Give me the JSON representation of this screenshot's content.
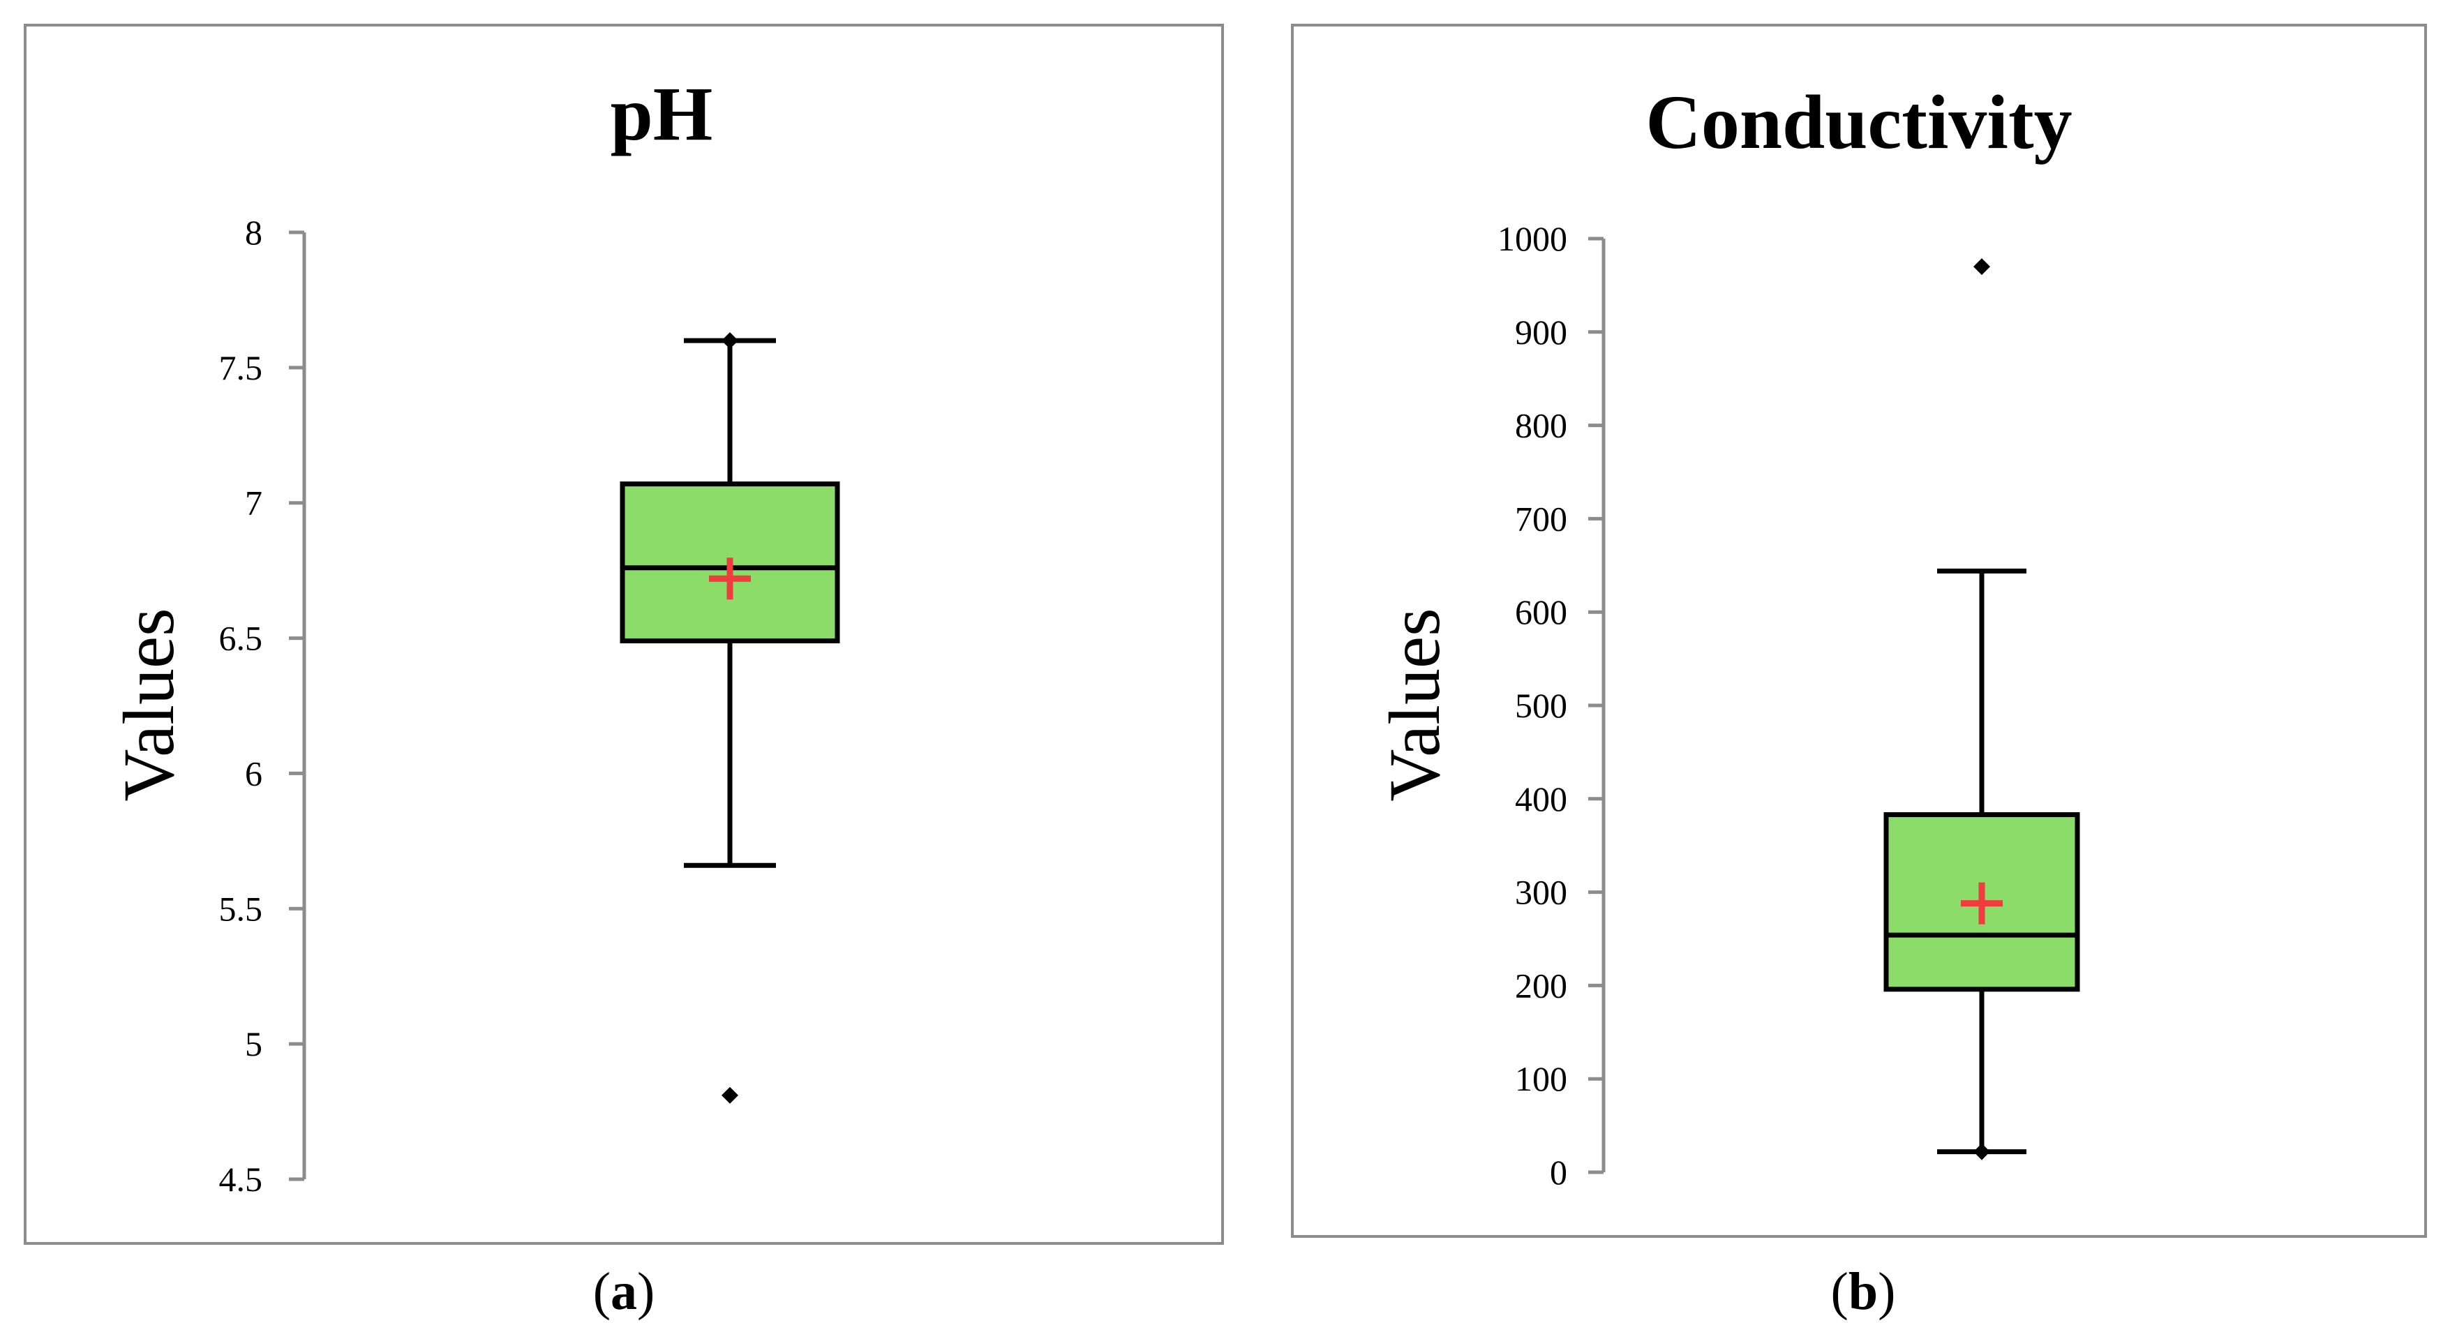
{
  "colors": {
    "box_fill": "#8cdc6a",
    "mean_marker": "#f03c3c",
    "frame": "#8c8c8c"
  },
  "chart_data": [
    {
      "type": "box",
      "title": "pH",
      "ylabel": "Values",
      "xlabel": "",
      "ylim": [
        4.5,
        8
      ],
      "yticks": [
        4.5,
        5,
        5.5,
        6,
        6.5,
        7,
        7.5,
        8
      ],
      "ytick_labels": [
        "4.5",
        "5",
        "5.5",
        "6",
        "6.5",
        "7",
        "7.5",
        "8"
      ],
      "whisker_low": 5.66,
      "q1": 6.49,
      "median": 6.76,
      "q3": 7.07,
      "whisker_high": 7.6,
      "mean": 6.72,
      "outliers": [
        4.81,
        7.6
      ],
      "caption": {
        "open": "(",
        "letter": "a",
        "close": ")"
      }
    },
    {
      "type": "box",
      "title": "Conductivity",
      "ylabel": "Values",
      "xlabel": "",
      "ylim": [
        0,
        1000
      ],
      "yticks": [
        0,
        100,
        200,
        300,
        400,
        500,
        600,
        700,
        800,
        900,
        1000
      ],
      "ytick_labels": [
        "0",
        "100",
        "200",
        "300",
        "400",
        "500",
        "600",
        "700",
        "800",
        "900",
        "1000"
      ],
      "whisker_low": 22,
      "q1": 196,
      "median": 254,
      "q3": 383,
      "whisker_high": 644,
      "mean": 288,
      "outliers": [
        970,
        22
      ],
      "caption": {
        "open": "(",
        "letter": "b",
        "close": ")"
      }
    }
  ]
}
